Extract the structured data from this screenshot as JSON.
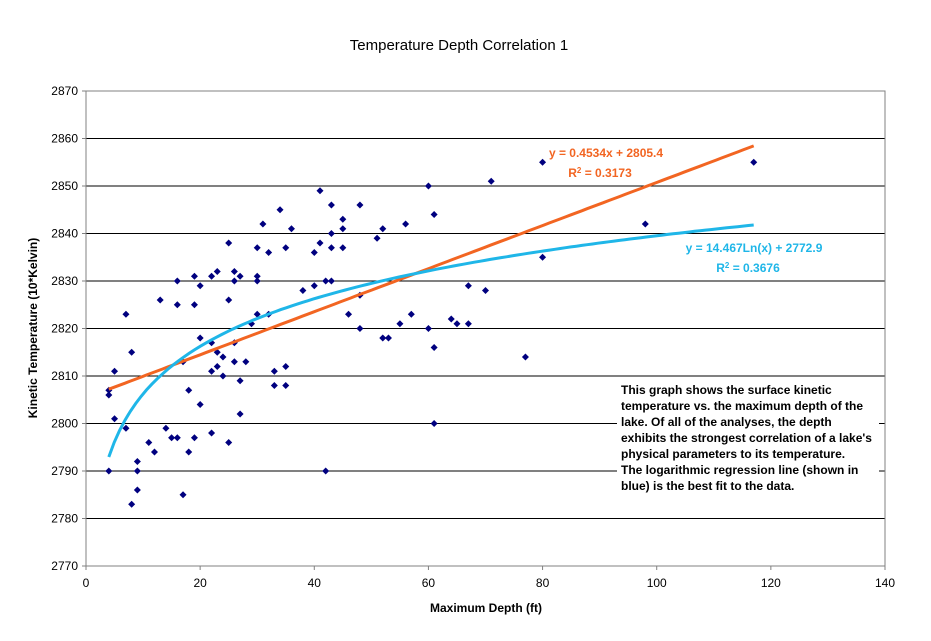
{
  "chart_data": {
    "type": "scatter",
    "title": "Temperature Depth Correlation 1",
    "xlabel": "Maximum Depth (ft)",
    "ylabel": "Kinetic Temperature (10*Kelvin)",
    "xlim": [
      0,
      140
    ],
    "ylim": [
      2770,
      2870
    ],
    "xticks": [
      0,
      20,
      40,
      60,
      80,
      100,
      120,
      140
    ],
    "yticks": [
      2770,
      2780,
      2790,
      2800,
      2810,
      2820,
      2830,
      2840,
      2850,
      2860,
      2870
    ],
    "grid": "horizontal",
    "points": [
      [
        4,
        2790
      ],
      [
        4,
        2806
      ],
      [
        4,
        2807
      ],
      [
        5,
        2801
      ],
      [
        5,
        2811
      ],
      [
        7,
        2799
      ],
      [
        7,
        2823
      ],
      [
        8,
        2783
      ],
      [
        8,
        2815
      ],
      [
        9,
        2786
      ],
      [
        9,
        2790
      ],
      [
        9,
        2792
      ],
      [
        11,
        2796
      ],
      [
        12,
        2794
      ],
      [
        13,
        2826
      ],
      [
        14,
        2799
      ],
      [
        15,
        2797
      ],
      [
        16,
        2797
      ],
      [
        16,
        2825
      ],
      [
        16,
        2830
      ],
      [
        17,
        2785
      ],
      [
        17,
        2813
      ],
      [
        18,
        2794
      ],
      [
        18,
        2807
      ],
      [
        19,
        2797
      ],
      [
        19,
        2825
      ],
      [
        19,
        2831
      ],
      [
        20,
        2804
      ],
      [
        20,
        2818
      ],
      [
        20,
        2829
      ],
      [
        22,
        2798
      ],
      [
        22,
        2811
      ],
      [
        22,
        2817
      ],
      [
        22,
        2831
      ],
      [
        23,
        2812
      ],
      [
        23,
        2815
      ],
      [
        23,
        2832
      ],
      [
        24,
        2810
      ],
      [
        24,
        2814
      ],
      [
        25,
        2796
      ],
      [
        25,
        2826
      ],
      [
        25,
        2838
      ],
      [
        26,
        2813
      ],
      [
        26,
        2817
      ],
      [
        26,
        2830
      ],
      [
        26,
        2832
      ],
      [
        27,
        2802
      ],
      [
        27,
        2809
      ],
      [
        27,
        2831
      ],
      [
        28,
        2813
      ],
      [
        29,
        2821
      ],
      [
        30,
        2823
      ],
      [
        30,
        2830
      ],
      [
        30,
        2831
      ],
      [
        30,
        2837
      ],
      [
        31,
        2842
      ],
      [
        32,
        2823
      ],
      [
        32,
        2836
      ],
      [
        33,
        2808
      ],
      [
        33,
        2811
      ],
      [
        34,
        2845
      ],
      [
        35,
        2808
      ],
      [
        35,
        2812
      ],
      [
        35,
        2837
      ],
      [
        36,
        2841
      ],
      [
        38,
        2828
      ],
      [
        40,
        2829
      ],
      [
        40,
        2836
      ],
      [
        41,
        2838
      ],
      [
        41,
        2849
      ],
      [
        42,
        2790
      ],
      [
        42,
        2830
      ],
      [
        43,
        2830
      ],
      [
        43,
        2837
      ],
      [
        43,
        2840
      ],
      [
        43,
        2846
      ],
      [
        45,
        2837
      ],
      [
        45,
        2841
      ],
      [
        45,
        2843
      ],
      [
        46,
        2823
      ],
      [
        48,
        2820
      ],
      [
        48,
        2827
      ],
      [
        48,
        2846
      ],
      [
        51,
        2839
      ],
      [
        52,
        2818
      ],
      [
        52,
        2841
      ],
      [
        53,
        2818
      ],
      [
        55,
        2821
      ],
      [
        56,
        2842
      ],
      [
        57,
        2823
      ],
      [
        60,
        2820
      ],
      [
        60,
        2850
      ],
      [
        61,
        2800
      ],
      [
        61,
        2816
      ],
      [
        61,
        2844
      ],
      [
        64,
        2822
      ],
      [
        65,
        2821
      ],
      [
        67,
        2821
      ],
      [
        67,
        2829
      ],
      [
        70,
        2828
      ],
      [
        71,
        2851
      ],
      [
        77,
        2814
      ],
      [
        80,
        2835
      ],
      [
        80,
        2855
      ],
      [
        98,
        2842
      ],
      [
        117,
        2855
      ]
    ],
    "trendlines": [
      {
        "kind": "linear",
        "slope": 0.4534,
        "intercept": 2805.4,
        "x_range": [
          4,
          117
        ],
        "color": "#f26522",
        "equation": "y = 0.4534x + 2805.4",
        "r2_label": "R",
        "r2_value": " = 0.3173"
      },
      {
        "kind": "logarithmic",
        "a": 14.467,
        "b": 2772.9,
        "x_range": [
          4,
          117
        ],
        "color": "#1fb6e8",
        "equation": "y = 14.467Ln(x) + 2772.9",
        "r2_label": "R",
        "r2_value": " = 0.3676"
      }
    ],
    "point_color": "#00007f"
  },
  "note": {
    "lines": [
      "This graph shows the surface kinetic temperature vs. the maximum depth of the lake.  Of all of the analyses, the depth exhibits the strongest correlation of a lake's physical parameters to its temperature.",
      "The logarithmic regression line (shown in blue) is the best fit to the data."
    ]
  }
}
